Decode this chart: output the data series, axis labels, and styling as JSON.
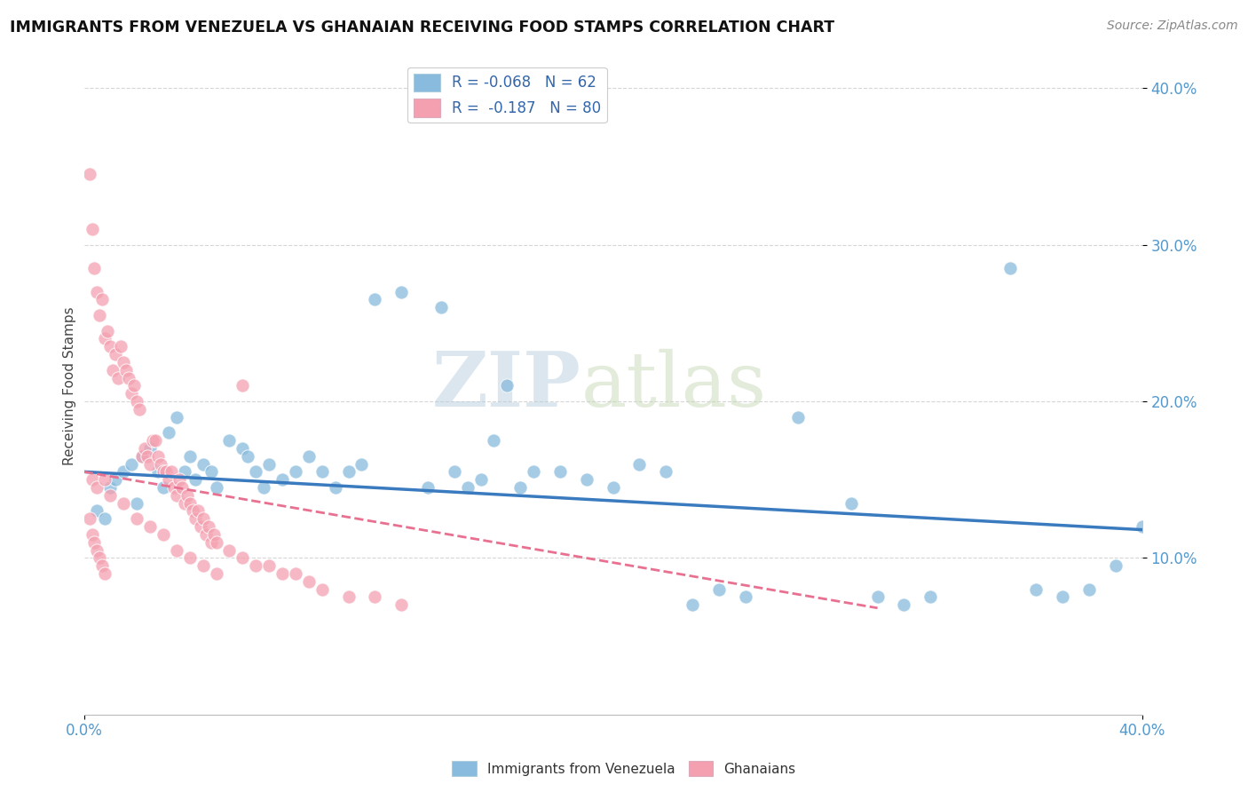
{
  "title": "IMMIGRANTS FROM VENEZUELA VS GHANAIAN RECEIVING FOOD STAMPS CORRELATION CHART",
  "source": "Source: ZipAtlas.com",
  "ylabel": "Receiving Food Stamps",
  "xlim": [
    0.0,
    0.4
  ],
  "ylim": [
    0.0,
    0.42
  ],
  "yticks": [
    0.1,
    0.2,
    0.3,
    0.4
  ],
  "ytick_labels": [
    "10.0%",
    "20.0%",
    "30.0%",
    "40.0%"
  ],
  "legend_entry1": "R = -0.068   N = 62",
  "legend_entry2": "R =  -0.187   N = 80",
  "series1_color": "#88bbdd",
  "series2_color": "#f4a0b0",
  "trend1_color": "#3a7abf",
  "trend2_color": "#e87090",
  "watermark_zip": "ZIP",
  "watermark_atlas": "atlas",
  "watermark_color_zip": "#b8cfe0",
  "watermark_color_atlas": "#c8d8b0",
  "background_color": "#ffffff",
  "grid_color": "#cccccc",
  "R1": -0.068,
  "N1": 62,
  "R2": -0.187,
  "N2": 80,
  "trend1_x0": 0.0,
  "trend1_y0": 0.155,
  "trend1_x1": 0.4,
  "trend1_y1": 0.118,
  "trend2_x0": 0.0,
  "trend2_y0": 0.155,
  "trend2_x1": 0.3,
  "trend2_y1": 0.068,
  "venezuela_points": [
    [
      0.005,
      0.13
    ],
    [
      0.008,
      0.125
    ],
    [
      0.01,
      0.145
    ],
    [
      0.012,
      0.15
    ],
    [
      0.015,
      0.155
    ],
    [
      0.018,
      0.16
    ],
    [
      0.02,
      0.135
    ],
    [
      0.022,
      0.165
    ],
    [
      0.025,
      0.17
    ],
    [
      0.028,
      0.155
    ],
    [
      0.03,
      0.145
    ],
    [
      0.032,
      0.18
    ],
    [
      0.035,
      0.19
    ],
    [
      0.038,
      0.155
    ],
    [
      0.04,
      0.165
    ],
    [
      0.042,
      0.15
    ],
    [
      0.045,
      0.16
    ],
    [
      0.048,
      0.155
    ],
    [
      0.05,
      0.145
    ],
    [
      0.055,
      0.175
    ],
    [
      0.06,
      0.17
    ],
    [
      0.062,
      0.165
    ],
    [
      0.065,
      0.155
    ],
    [
      0.068,
      0.145
    ],
    [
      0.07,
      0.16
    ],
    [
      0.075,
      0.15
    ],
    [
      0.08,
      0.155
    ],
    [
      0.085,
      0.165
    ],
    [
      0.09,
      0.155
    ],
    [
      0.095,
      0.145
    ],
    [
      0.1,
      0.155
    ],
    [
      0.105,
      0.16
    ],
    [
      0.11,
      0.265
    ],
    [
      0.12,
      0.27
    ],
    [
      0.13,
      0.145
    ],
    [
      0.135,
      0.26
    ],
    [
      0.14,
      0.155
    ],
    [
      0.145,
      0.145
    ],
    [
      0.15,
      0.15
    ],
    [
      0.155,
      0.175
    ],
    [
      0.16,
      0.21
    ],
    [
      0.165,
      0.145
    ],
    [
      0.17,
      0.155
    ],
    [
      0.18,
      0.155
    ],
    [
      0.19,
      0.15
    ],
    [
      0.2,
      0.145
    ],
    [
      0.21,
      0.16
    ],
    [
      0.22,
      0.155
    ],
    [
      0.23,
      0.07
    ],
    [
      0.24,
      0.08
    ],
    [
      0.25,
      0.075
    ],
    [
      0.27,
      0.19
    ],
    [
      0.29,
      0.135
    ],
    [
      0.3,
      0.075
    ],
    [
      0.31,
      0.07
    ],
    [
      0.32,
      0.075
    ],
    [
      0.36,
      0.08
    ],
    [
      0.37,
      0.075
    ],
    [
      0.38,
      0.08
    ],
    [
      0.39,
      0.095
    ],
    [
      0.35,
      0.285
    ],
    [
      0.4,
      0.12
    ]
  ],
  "ghana_points": [
    [
      0.002,
      0.345
    ],
    [
      0.003,
      0.31
    ],
    [
      0.004,
      0.285
    ],
    [
      0.005,
      0.27
    ],
    [
      0.006,
      0.255
    ],
    [
      0.007,
      0.265
    ],
    [
      0.008,
      0.24
    ],
    [
      0.009,
      0.245
    ],
    [
      0.01,
      0.235
    ],
    [
      0.011,
      0.22
    ],
    [
      0.012,
      0.23
    ],
    [
      0.013,
      0.215
    ],
    [
      0.014,
      0.235
    ],
    [
      0.015,
      0.225
    ],
    [
      0.016,
      0.22
    ],
    [
      0.017,
      0.215
    ],
    [
      0.018,
      0.205
    ],
    [
      0.019,
      0.21
    ],
    [
      0.02,
      0.2
    ],
    [
      0.021,
      0.195
    ],
    [
      0.022,
      0.165
    ],
    [
      0.023,
      0.17
    ],
    [
      0.024,
      0.165
    ],
    [
      0.025,
      0.16
    ],
    [
      0.026,
      0.175
    ],
    [
      0.027,
      0.175
    ],
    [
      0.028,
      0.165
    ],
    [
      0.029,
      0.16
    ],
    [
      0.03,
      0.155
    ],
    [
      0.031,
      0.155
    ],
    [
      0.032,
      0.15
    ],
    [
      0.033,
      0.155
    ],
    [
      0.034,
      0.145
    ],
    [
      0.035,
      0.14
    ],
    [
      0.036,
      0.15
    ],
    [
      0.037,
      0.145
    ],
    [
      0.038,
      0.135
    ],
    [
      0.039,
      0.14
    ],
    [
      0.04,
      0.135
    ],
    [
      0.041,
      0.13
    ],
    [
      0.042,
      0.125
    ],
    [
      0.043,
      0.13
    ],
    [
      0.044,
      0.12
    ],
    [
      0.045,
      0.125
    ],
    [
      0.046,
      0.115
    ],
    [
      0.047,
      0.12
    ],
    [
      0.048,
      0.11
    ],
    [
      0.049,
      0.115
    ],
    [
      0.05,
      0.11
    ],
    [
      0.055,
      0.105
    ],
    [
      0.06,
      0.1
    ],
    [
      0.065,
      0.095
    ],
    [
      0.07,
      0.095
    ],
    [
      0.075,
      0.09
    ],
    [
      0.08,
      0.09
    ],
    [
      0.085,
      0.085
    ],
    [
      0.09,
      0.08
    ],
    [
      0.1,
      0.075
    ],
    [
      0.11,
      0.075
    ],
    [
      0.12,
      0.07
    ],
    [
      0.003,
      0.15
    ],
    [
      0.005,
      0.145
    ],
    [
      0.008,
      0.15
    ],
    [
      0.01,
      0.14
    ],
    [
      0.015,
      0.135
    ],
    [
      0.02,
      0.125
    ],
    [
      0.025,
      0.12
    ],
    [
      0.03,
      0.115
    ],
    [
      0.035,
      0.105
    ],
    [
      0.04,
      0.1
    ],
    [
      0.045,
      0.095
    ],
    [
      0.05,
      0.09
    ],
    [
      0.002,
      0.125
    ],
    [
      0.003,
      0.115
    ],
    [
      0.004,
      0.11
    ],
    [
      0.005,
      0.105
    ],
    [
      0.006,
      0.1
    ],
    [
      0.007,
      0.095
    ],
    [
      0.008,
      0.09
    ],
    [
      0.06,
      0.21
    ]
  ]
}
